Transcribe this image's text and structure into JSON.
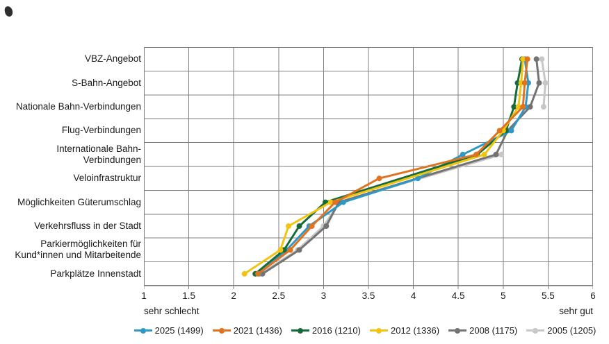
{
  "chart_data": {
    "type": "line",
    "orientation": "horizontal_categories",
    "title": "",
    "categories": [
      "VBZ-Angebot",
      "S-Bahn-Angebot",
      "Nationale Bahn-Verbindungen",
      "Flug-Verbindungen",
      "Internationale Bahn-Verbindungen",
      "Veloinfrastruktur",
      "Möglichkeiten Güterumschlag",
      "Verkehrsfluss in der Stadt",
      "Parkiermöglichkeiten für\nKund*innen und Mitarbeitende",
      "Parkplätze Innenstadt"
    ],
    "xlim": [
      1,
      6
    ],
    "xticks": [
      1,
      1.5,
      2,
      2.5,
      3,
      3.5,
      4,
      4.5,
      5,
      5.5,
      6
    ],
    "xtick_labels": [
      "1",
      "1.5",
      "2",
      "2.5",
      "3",
      "3.5",
      "4",
      "4.5",
      "5",
      "5.5",
      "6"
    ],
    "x_axis_min_label": "sehr schlecht",
    "x_axis_max_label": "sehr gut",
    "grid": true,
    "grid_color": "#7f7f7f",
    "legend_position": "bottom",
    "marker": "circle",
    "z_order": [
      5,
      4,
      0,
      2,
      3,
      1
    ],
    "series": [
      {
        "name": "2025 (1499)",
        "color": "#2f98c5",
        "values": [
          5.24,
          5.28,
          5.25,
          5.09,
          4.55,
          4.05,
          3.22,
          2.84,
          2.59,
          2.28
        ],
        "segments": [
          [
            0,
            1,
            2,
            3,
            4,
            5,
            6,
            7,
            8,
            9
          ]
        ]
      },
      {
        "name": "2021 (1436)",
        "color": "#e1731f",
        "values": [
          5.27,
          5.24,
          5.22,
          4.96,
          4.7,
          3.62,
          3.13,
          2.87,
          2.63,
          2.27
        ],
        "segments": [
          [
            0,
            1,
            2,
            3,
            4,
            5,
            6,
            7,
            8,
            9
          ]
        ]
      },
      {
        "name": "2016 (1210)",
        "color": "#176b3a",
        "values": [
          5.21,
          5.16,
          5.12,
          5.03,
          4.71,
          null,
          3.02,
          2.73,
          2.56,
          2.24
        ],
        "segments": [
          [
            0,
            1,
            2,
            3,
            4,
            6,
            7,
            8,
            9
          ]
        ]
      },
      {
        "name": "2012 (1336)",
        "color": "#f2c412",
        "values": [
          5.22,
          5.2,
          5.17,
          5.0,
          4.79,
          null,
          3.08,
          2.61,
          2.52,
          2.12
        ],
        "segments": [
          [
            0,
            1,
            2,
            3,
            4,
            6,
            7,
            8,
            9
          ]
        ]
      },
      {
        "name": "2008 (1175)",
        "color": "#737373",
        "values": [
          5.37,
          5.4,
          5.3,
          5.05,
          4.92,
          null,
          3.17,
          3.03,
          2.73,
          2.32
        ],
        "segments": [
          [
            0,
            1,
            2,
            3,
            4,
            6,
            7,
            8,
            9
          ]
        ]
      },
      {
        "name": "2005 (1205)",
        "color": "#c7c7c7",
        "values": [
          5.43,
          5.47,
          5.45,
          null,
          4.98,
          null,
          3.18,
          3.0,
          2.71,
          2.3
        ],
        "segments": [
          [
            0,
            1,
            2
          ],
          [
            4,
            6,
            7,
            8,
            9
          ]
        ]
      }
    ]
  }
}
